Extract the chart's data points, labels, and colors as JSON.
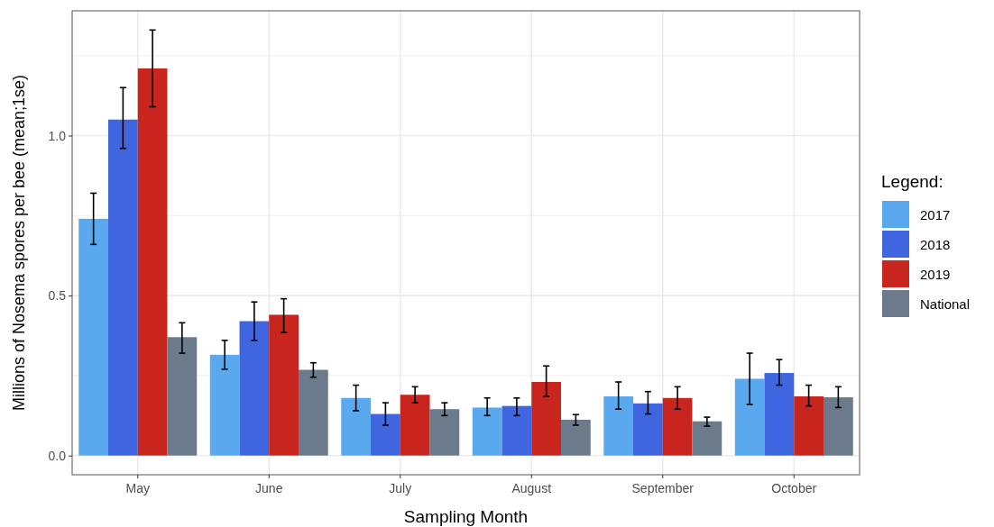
{
  "chart_data": {
    "type": "bar",
    "xlabel": "Sampling Month",
    "ylabel": "Millions of Nosema spores per bee (mean;1se)",
    "legend_title": "Legend:",
    "categories": [
      "May",
      "June",
      "July",
      "August",
      "September",
      "October"
    ],
    "series": [
      {
        "name": "2017",
        "color": "#5aa9ee",
        "values": [
          0.74,
          0.315,
          0.18,
          0.15,
          0.185,
          0.24
        ],
        "errors": [
          [
            0.66,
            0.82
          ],
          [
            0.27,
            0.36
          ],
          [
            0.14,
            0.22
          ],
          [
            0.125,
            0.18
          ],
          [
            0.145,
            0.23
          ],
          [
            0.16,
            0.32
          ]
        ]
      },
      {
        "name": "2018",
        "color": "#3f66de",
        "values": [
          1.05,
          0.42,
          0.13,
          0.155,
          0.163,
          0.258
        ],
        "errors": [
          [
            0.96,
            1.15
          ],
          [
            0.36,
            0.48
          ],
          [
            0.095,
            0.165
          ],
          [
            0.125,
            0.18
          ],
          [
            0.13,
            0.2
          ],
          [
            0.22,
            0.3
          ]
        ]
      },
      {
        "name": "2019",
        "color": "#c9251f",
        "values": [
          1.21,
          0.44,
          0.19,
          0.23,
          0.18,
          0.185
        ],
        "errors": [
          [
            1.09,
            1.33
          ],
          [
            0.385,
            0.49
          ],
          [
            0.165,
            0.215
          ],
          [
            0.185,
            0.28
          ],
          [
            0.145,
            0.215
          ],
          [
            0.155,
            0.22
          ]
        ]
      },
      {
        "name": "National",
        "color": "#6b7b8c",
        "values": [
          0.37,
          0.268,
          0.145,
          0.112,
          0.107,
          0.182
        ],
        "errors": [
          [
            0.32,
            0.415
          ],
          [
            0.245,
            0.29
          ],
          [
            0.125,
            0.165
          ],
          [
            0.095,
            0.128
          ],
          [
            0.092,
            0.12
          ],
          [
            0.15,
            0.215
          ]
        ]
      }
    ],
    "ylim": [
      -0.06,
      1.39
    ],
    "yticks": [
      {
        "value": 0,
        "label": "0.0"
      },
      {
        "value": 0.25,
        "label": null
      },
      {
        "value": 0.5,
        "label": "0.5"
      },
      {
        "value": 0.75,
        "label": null
      },
      {
        "value": 1,
        "label": "1.0"
      },
      {
        "value": 1.25,
        "label": null
      }
    ],
    "grid": true,
    "legend": "right"
  }
}
